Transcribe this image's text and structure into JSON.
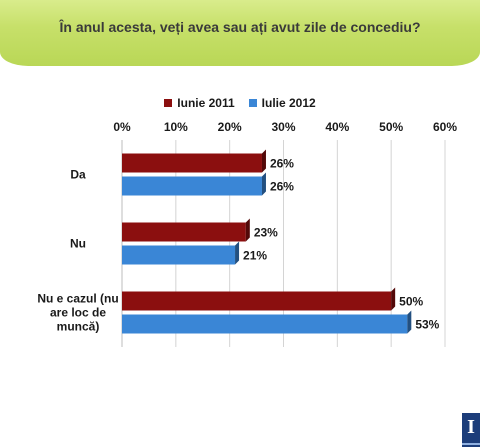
{
  "header": {
    "title": "În anul acesta, veți avea sau ați avut zile de concediu?"
  },
  "logo": {
    "text": "I"
  },
  "chart_data": {
    "type": "bar",
    "orientation": "horizontal",
    "categories": [
      [
        "Da"
      ],
      [
        "Nu"
      ],
      [
        "Nu e cazul (nu",
        "are loc de",
        "muncă)"
      ]
    ],
    "series": [
      {
        "name": "Iunie 2011",
        "color": "#8b0f0f",
        "values": [
          26,
          23,
          50
        ],
        "labels": [
          "26%",
          "23%",
          "50%"
        ]
      },
      {
        "name": "Iulie 2012",
        "color": "#3a86d6",
        "values": [
          26,
          21,
          53
        ],
        "labels": [
          "26%",
          "21%",
          "53%"
        ]
      }
    ],
    "xlim": [
      0,
      60
    ],
    "ticks": [
      "0%",
      "10%",
      "20%",
      "30%",
      "40%",
      "50%",
      "60%"
    ],
    "tick_values": [
      0,
      10,
      20,
      30,
      40,
      50,
      60
    ],
    "grid": true,
    "legend": "top"
  }
}
